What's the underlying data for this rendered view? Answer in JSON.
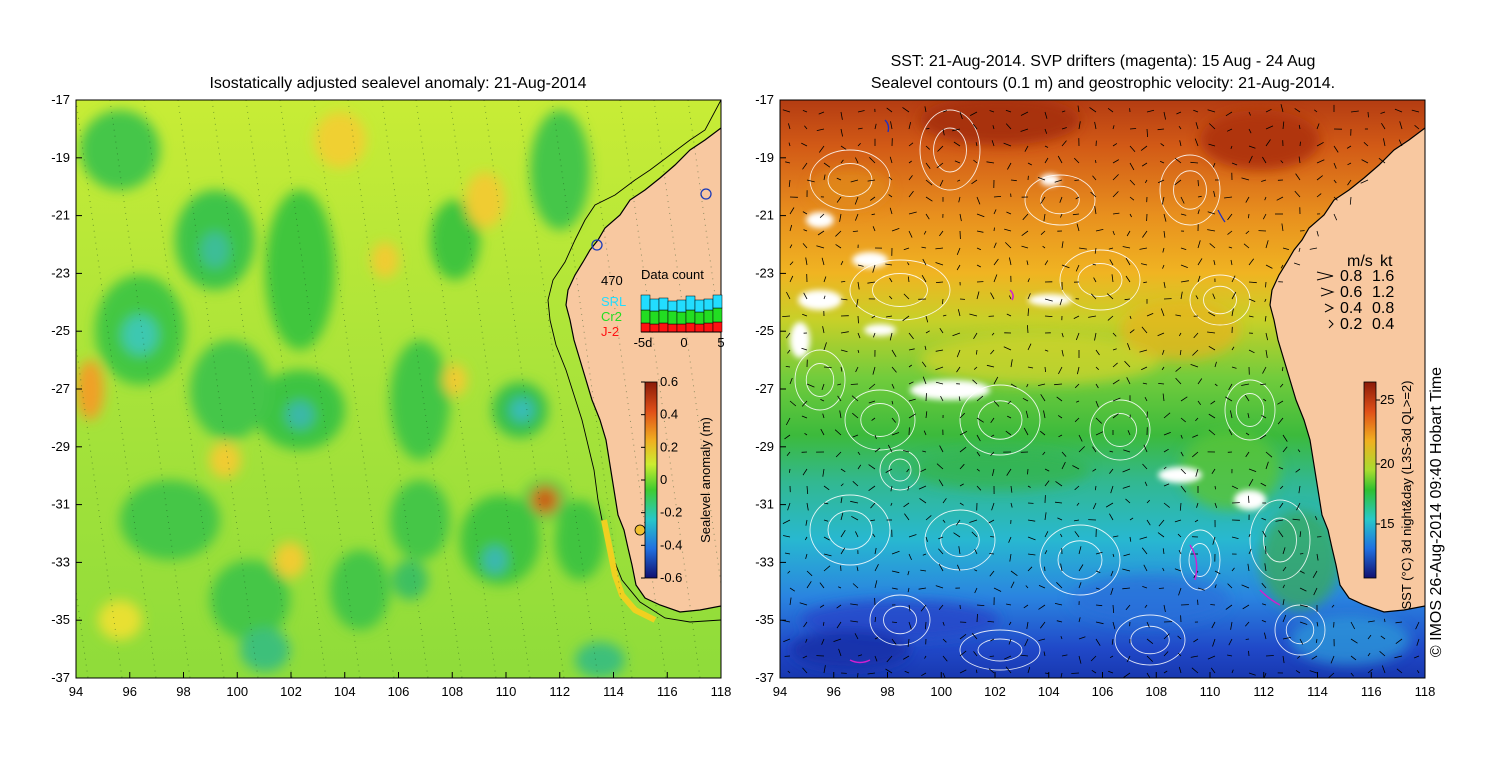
{
  "left_panel": {
    "title": "Isostatically adjusted sealevel anomaly: 21-Aug-2014",
    "data_count": {
      "title": "Data count",
      "total": "470",
      "satellites": [
        {
          "name": "SRL",
          "color": "#22ddff"
        },
        {
          "name": "Cr2",
          "color": "#22dd22"
        },
        {
          "name": "J-2",
          "color": "#ff1111"
        }
      ],
      "axis_ticks": [
        "-5d",
        "0",
        "5"
      ]
    },
    "colorbar": {
      "label": "Sealevel anomaly (m)",
      "ticks": [
        "0.6",
        "0.4",
        "0.2",
        "0",
        "-0.2",
        "-0.4",
        "-0.6"
      ]
    }
  },
  "right_panel": {
    "title_line1": "SST: 21-Aug-2014. SVP drifters (magenta): 15 Aug - 24 Aug",
    "title_line2": "Sealevel contours (0.1 m) and geostrophic velocity: 21-Aug-2014.",
    "velocity_legend": {
      "header_ms": "m/s",
      "header_kt": "kt",
      "rows": [
        {
          "ms": "0.8",
          "kt": "1.6"
        },
        {
          "ms": "0.6",
          "kt": "1.2"
        },
        {
          "ms": "0.4",
          "kt": "0.8"
        },
        {
          "ms": "0.2",
          "kt": "0.4"
        }
      ]
    },
    "colorbar": {
      "label": "SST (°C) 3d night&day (L3S-3d QL>=2)",
      "ticks": [
        "25",
        "20",
        "15"
      ]
    }
  },
  "axes": {
    "lon_ticks": [
      "94",
      "96",
      "98",
      "100",
      "102",
      "104",
      "106",
      "108",
      "110",
      "112",
      "114",
      "116",
      "118"
    ],
    "lat_ticks": [
      "-17",
      "-19",
      "-21",
      "-23",
      "-25",
      "-27",
      "-29",
      "-31",
      "-33",
      "-35",
      "-37"
    ]
  },
  "copyright": "© IMOS 26-Aug-2014 09:40 Hobart Time",
  "colors": {
    "land": "#f8c8a0",
    "sla_green": "#44cc33",
    "sla_yellow": "#ccee33",
    "sst_red": "#b83a10",
    "sst_blue": "#2060e0"
  }
}
